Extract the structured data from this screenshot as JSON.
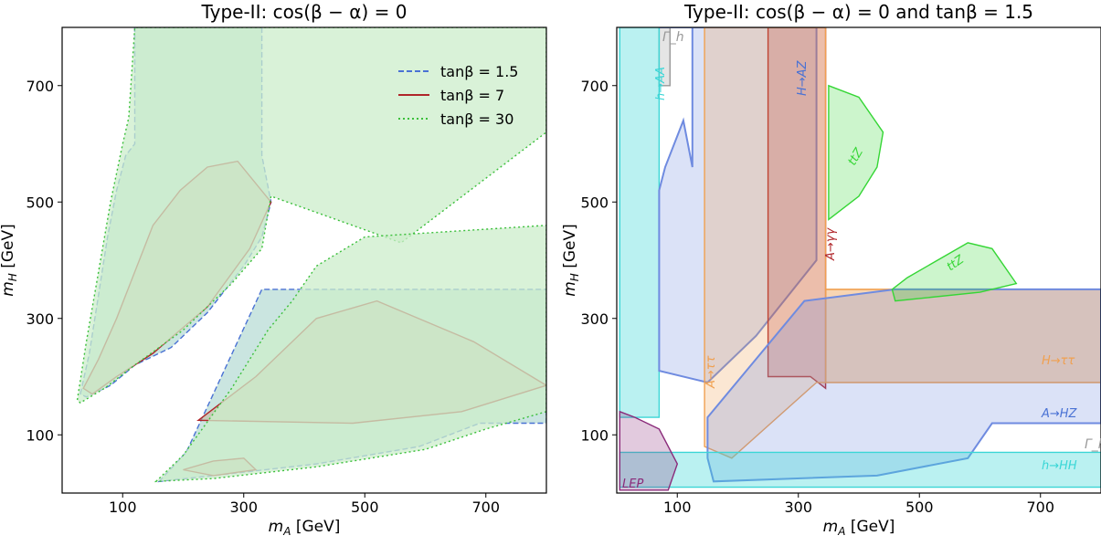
{
  "chart_data": [
    {
      "type": "area",
      "title": "Type-II: cos(β − α) = 0",
      "xlabel": "m_A [GeV]",
      "ylabel": "m_H [GeV]",
      "xlim": [
        0,
        800
      ],
      "ylim": [
        0,
        800
      ],
      "xticks": [
        100,
        300,
        500,
        700
      ],
      "yticks": [
        100,
        300,
        500,
        700
      ],
      "grid": false,
      "legend_position": "top-right",
      "series": [
        {
          "name": "tanβ = 1.5",
          "color": "#4a72d4",
          "fill": "#9fcfc6",
          "line": "dashed",
          "regions": [
            [
              [
                30,
                170
              ],
              [
                45,
                240
              ],
              [
                60,
                340
              ],
              [
                75,
                440
              ],
              [
                90,
                520
              ],
              [
                105,
                580
              ],
              [
                120,
                600
              ],
              [
                120,
                800
              ],
              [
                330,
                800
              ],
              [
                330,
                580
              ],
              [
                345,
                500
              ],
              [
                330,
                440
              ],
              [
                300,
                390
              ],
              [
                240,
                310
              ],
              [
                180,
                250
              ],
              [
                120,
                220
              ],
              [
                80,
                185
              ],
              [
                40,
                165
              ]
            ],
            [
              [
                160,
                20
              ],
              [
                205,
                70
              ],
              [
                330,
                350
              ],
              [
                800,
                350
              ],
              [
                800,
                120
              ],
              [
                690,
                120
              ],
              [
                590,
                80
              ],
              [
                420,
                50
              ],
              [
                250,
                30
              ]
            ]
          ]
        },
        {
          "name": "tanβ = 7",
          "color": "#b0262a",
          "fill": "#c8b89a",
          "line": "solid",
          "regions": [
            [
              [
                35,
                180
              ],
              [
                60,
                230
              ],
              [
                90,
                300
              ],
              [
                120,
                380
              ],
              [
                150,
                460
              ],
              [
                195,
                520
              ],
              [
                240,
                560
              ],
              [
                290,
                570
              ],
              [
                345,
                500
              ],
              [
                310,
                420
              ],
              [
                240,
                320
              ],
              [
                150,
                240
              ],
              [
                90,
                200
              ],
              [
                50,
                170
              ]
            ],
            [
              [
                225,
                125
              ],
              [
                320,
                200
              ],
              [
                420,
                300
              ],
              [
                520,
                330
              ],
              [
                680,
                260
              ],
              [
                800,
                185
              ],
              [
                660,
                140
              ],
              [
                480,
                120
              ]
            ],
            [
              [
                200,
                40
              ],
              [
                250,
                55
              ],
              [
                300,
                60
              ],
              [
                320,
                40
              ],
              [
                250,
                30
              ]
            ]
          ]
        },
        {
          "name": "tanβ = 30",
          "color": "#3bbf3b",
          "fill": "#cceecb",
          "line": "dotted",
          "regions": [
            [
              [
                25,
                160
              ],
              [
                40,
                260
              ],
              [
                60,
                380
              ],
              [
                80,
                500
              ],
              [
                100,
                600
              ],
              [
                110,
                645
              ],
              [
                120,
                800
              ],
              [
                600,
                800
              ],
              [
                800,
                800
              ],
              [
                800,
                620
              ],
              [
                560,
                430
              ],
              [
                345,
                510
              ],
              [
                330,
                420
              ],
              [
                280,
                360
              ],
              [
                200,
                280
              ],
              [
                120,
                220
              ],
              [
                70,
                180
              ],
              [
                30,
                155
              ]
            ],
            [
              [
                155,
                20
              ],
              [
                200,
                65
              ],
              [
                280,
                180
              ],
              [
                340,
                280
              ],
              [
                380,
                330
              ],
              [
                420,
                390
              ],
              [
                500,
                440
              ],
              [
                800,
                460
              ],
              [
                800,
                350
              ],
              [
                800,
                140
              ],
              [
                700,
                110
              ],
              [
                600,
                75
              ],
              [
                420,
                45
              ],
              [
                250,
                25
              ]
            ]
          ]
        }
      ]
    },
    {
      "type": "area",
      "title": "Type-II: cos(β − α) = 0 and tanβ = 1.5",
      "xlabel": "m_A [GeV]",
      "ylabel": "m_H [GeV]",
      "xlim": [
        0,
        800
      ],
      "ylim": [
        0,
        800
      ],
      "xticks": [
        100,
        300,
        500,
        700
      ],
      "yticks": [
        100,
        300,
        500,
        700
      ],
      "grid": false,
      "regions": [
        {
          "label": "Γ_h",
          "color": "#999999",
          "points": [
            [
              70,
              800
            ],
            [
              88,
              800
            ],
            [
              88,
              700
            ],
            [
              70,
              700
            ]
          ]
        },
        {
          "label": "h→AA",
          "color": "#3ad6d6",
          "points": [
            [
              5,
              800
            ],
            [
              70,
              800
            ],
            [
              70,
              130
            ],
            [
              5,
              130
            ]
          ]
        },
        {
          "label": "H→AZ",
          "color": "#6f8be0",
          "points": [
            [
              70,
              800
            ],
            [
              125,
              800
            ],
            [
              125,
              560
            ],
            [
              110,
              640
            ],
            [
              80,
              560
            ],
            [
              70,
              520
            ],
            [
              70,
              210
            ],
            [
              150,
              190
            ],
            [
              230,
              270
            ],
            [
              330,
              400
            ],
            [
              330,
              600
            ],
            [
              330,
              800
            ],
            [
              70,
              800
            ]
          ]
        },
        {
          "label": "A→γγ",
          "color": "#b0262a",
          "points": [
            [
              250,
              800
            ],
            [
              345,
              800
            ],
            [
              345,
              180
            ],
            [
              320,
              200
            ],
            [
              250,
              200
            ]
          ]
        },
        {
          "label": "A→ττ",
          "color": "#f0a050",
          "points": [
            [
              145,
              800
            ],
            [
              345,
              800
            ],
            [
              345,
              350
            ],
            [
              800,
              350
            ],
            [
              800,
              190
            ],
            [
              330,
              190
            ],
            [
              190,
              60
            ],
            [
              145,
              80
            ]
          ]
        },
        {
          "label": "H→ττ",
          "color": "#f0a050",
          "points": [
            [
              345,
              350
            ],
            [
              800,
              350
            ],
            [
              800,
              190
            ],
            [
              345,
              190
            ]
          ]
        },
        {
          "label": "A→HZ",
          "color": "#6f8be0",
          "points": [
            [
              150,
              60
            ],
            [
              150,
              130
            ],
            [
              230,
              230
            ],
            [
              310,
              330
            ],
            [
              460,
              350
            ],
            [
              800,
              350
            ],
            [
              800,
              120
            ],
            [
              620,
              120
            ],
            [
              580,
              60
            ],
            [
              430,
              30
            ],
            [
              160,
              20
            ]
          ]
        },
        {
          "label": "h→HH",
          "color": "#3ad6d6",
          "points": [
            [
              5,
              70
            ],
            [
              800,
              70
            ],
            [
              800,
              10
            ],
            [
              5,
              10
            ]
          ]
        },
        {
          "label": "LEP",
          "color": "#8a2a7a",
          "points": [
            [
              5,
              5
            ],
            [
              5,
              140
            ],
            [
              30,
              130
            ],
            [
              70,
              110
            ],
            [
              100,
              50
            ],
            [
              85,
              5
            ]
          ]
        },
        {
          "label": "ttZ",
          "color": "#35d635",
          "points": [
            [
              350,
              470
            ],
            [
              350,
              700
            ],
            [
              400,
              680
            ],
            [
              440,
              620
            ],
            [
              430,
              560
            ],
            [
              400,
              510
            ]
          ]
        },
        {
          "label": "ttZ",
          "color": "#35d635",
          "points": [
            [
              455,
              350
            ],
            [
              480,
              370
            ],
            [
              530,
              400
            ],
            [
              580,
              430
            ],
            [
              620,
              420
            ],
            [
              660,
              360
            ],
            [
              600,
              345
            ],
            [
              460,
              330
            ]
          ]
        }
      ]
    }
  ]
}
